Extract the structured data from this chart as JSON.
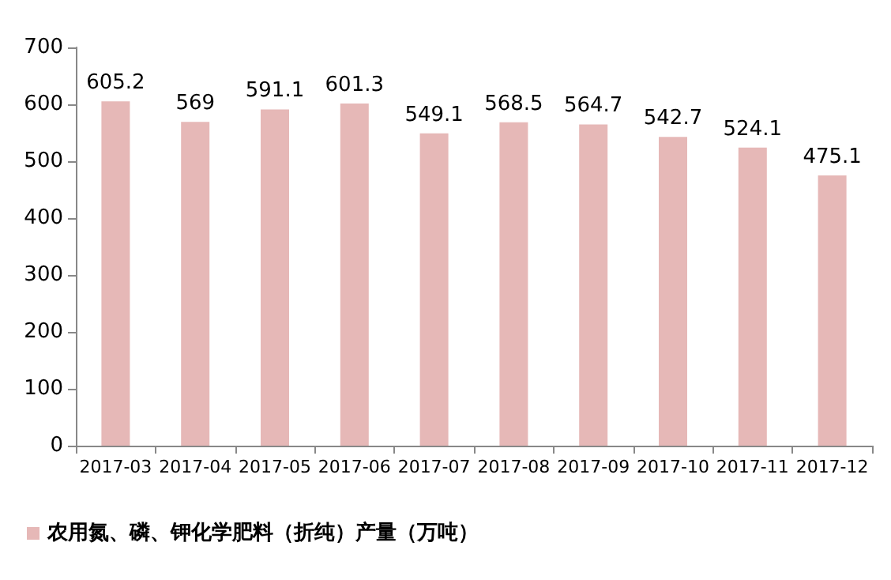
{
  "chart_data": {
    "type": "bar",
    "categories": [
      "2017-03",
      "2017-04",
      "2017-05",
      "2017-06",
      "2017-07",
      "2017-08",
      "2017-09",
      "2017-10",
      "2017-11",
      "2017-12"
    ],
    "series": [
      {
        "name": "农用氮、磷、钾化学肥料（折纯）产量（万吨）",
        "color": "#e6b8b7",
        "values": [
          605.2,
          569,
          591.1,
          601.3,
          549.1,
          568.5,
          564.7,
          542.7,
          524.1,
          475.1
        ]
      }
    ],
    "ylim": [
      0,
      700
    ],
    "yticks": [
      0,
      100,
      200,
      300,
      400,
      500,
      600,
      700
    ],
    "grid": false,
    "legend": "bottom left",
    "data_labels": true
  }
}
